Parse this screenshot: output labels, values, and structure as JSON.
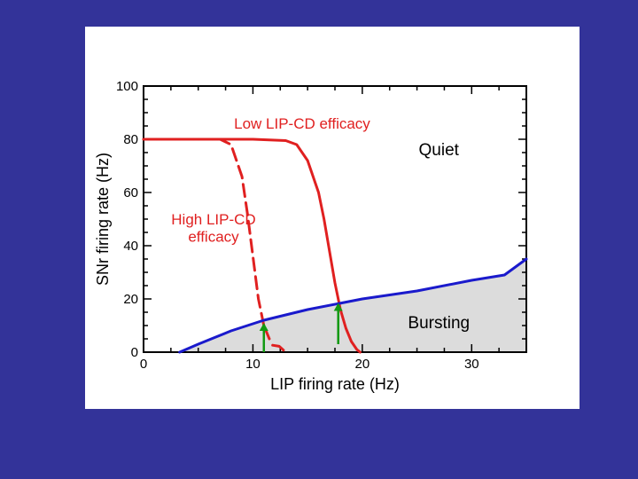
{
  "chart_data": {
    "type": "line",
    "title": "",
    "xlabel": "LIP firing rate (Hz)",
    "ylabel": "SNr firing rate (Hz)",
    "xlim": [
      0,
      35
    ],
    "ylim": [
      0,
      100
    ],
    "x_ticks": [
      0,
      10,
      20,
      30
    ],
    "y_ticks": [
      0,
      20,
      40,
      60,
      80,
      100
    ],
    "grid": false,
    "series": [
      {
        "name": "Low LIP-CD efficacy",
        "style": "solid",
        "color": "#e02020",
        "x": [
          0,
          5,
          10,
          13,
          14,
          15,
          16,
          16.5,
          17,
          17.5,
          18,
          18.5,
          19,
          19.5,
          19.8
        ],
        "y": [
          80,
          80,
          80,
          79.5,
          78,
          72,
          60,
          50,
          38,
          26,
          16,
          9,
          4,
          1,
          0
        ]
      },
      {
        "name": "High LIP-CD efficacy",
        "style": "dashed",
        "color": "#e02020",
        "x": [
          0,
          5,
          7,
          8,
          9,
          9.5,
          10,
          10.5,
          11,
          11.5
        ],
        "y": [
          80,
          80,
          80,
          78,
          66,
          52,
          36,
          20,
          10,
          5
        ]
      },
      {
        "name": "High LIP-CD efficacy (low branch)",
        "style": "dashed",
        "color": "#e02020",
        "x": [
          11.8,
          12.4,
          13
        ],
        "y": [
          2.6,
          2.2,
          0
        ]
      },
      {
        "name": "Bursting boundary",
        "style": "solid",
        "color": "#1a1acc",
        "x": [
          3.3,
          5,
          8,
          11,
          15,
          20,
          25,
          30,
          33,
          35
        ],
        "y": [
          0,
          3,
          8,
          12,
          16,
          20,
          23,
          27,
          29,
          35
        ]
      }
    ],
    "region_labels": [
      {
        "text": "Quiet",
        "x": 27,
        "y": 74
      },
      {
        "text": "Bursting",
        "x": 27,
        "y": 9
      }
    ],
    "annotations": [
      {
        "text": "Low LIP-CD efficacy",
        "x": 14.5,
        "y": 84,
        "color": "#e02020"
      },
      {
        "text": "High LIP-CD",
        "x": 6.4,
        "y": 48,
        "color": "#e02020"
      },
      {
        "text": "efficacy",
        "x": 6.4,
        "y": 41.5,
        "color": "#e02020"
      }
    ],
    "arrows": [
      {
        "x": 11,
        "y_from": 0,
        "y_to": 11,
        "color": "#119911"
      },
      {
        "x": 17.8,
        "y_from": 3,
        "y_to": 18.5,
        "color": "#119911"
      }
    ],
    "fill_color": "#dcdcdc"
  }
}
